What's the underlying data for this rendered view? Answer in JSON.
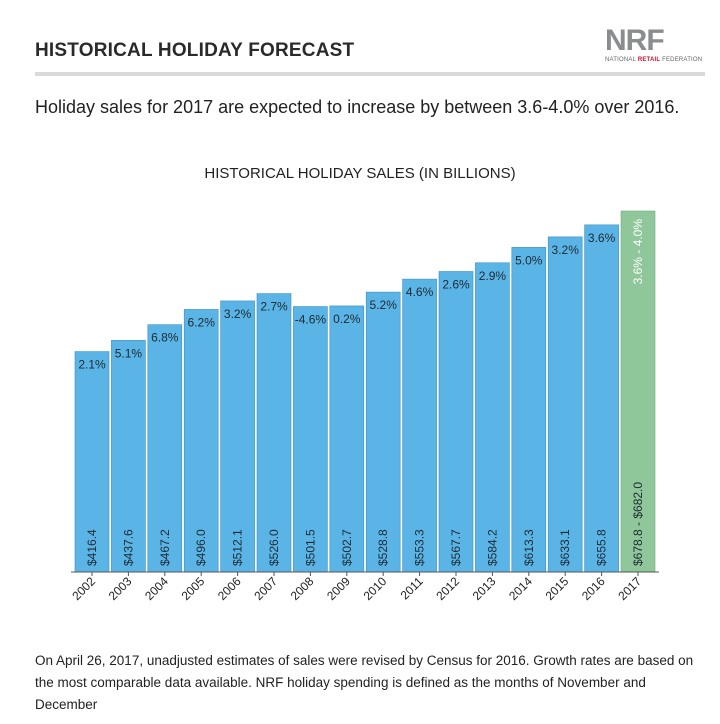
{
  "header": {
    "title": "HISTORICAL HOLIDAY FORECAST",
    "logo_text": "NRF",
    "logo_sub": "NATIONAL RETAIL FEDERATION"
  },
  "subtitle": "Holiday sales for 2017 are expected to increase by between 3.6-4.0% over 2016.",
  "footnote": "On April 26, 2017, unadjusted estimates of sales were revised by Census for 2016. Growth rates are based on the most comparable data available. NRF holiday spending is defined as the months of November and December",
  "colors": {
    "bar": "#5ab4e5",
    "forecast_bar": "#8fc79a",
    "bar_stroke": "#3d8fc0",
    "axis": "#555555"
  },
  "chart_data": {
    "type": "bar",
    "title": "HISTORICAL HOLIDAY SALES (IN BILLIONS)",
    "xlabel": "",
    "ylabel": "",
    "categories": [
      "2002",
      "2003",
      "2004",
      "2005",
      "2006",
      "2007",
      "2008",
      "2009",
      "2010",
      "2011",
      "2012",
      "2013",
      "2014",
      "2015",
      "2016",
      "2017"
    ],
    "values": [
      416.4,
      437.6,
      467.2,
      496.0,
      512.1,
      526.0,
      501.5,
      502.7,
      528.8,
      553.3,
      567.7,
      584.2,
      613.3,
      633.1,
      655.8,
      682.0
    ],
    "value_labels": [
      "$416.4",
      "$437.6",
      "$467.2",
      "$496.0",
      "$512.1",
      "$526.0",
      "$501.5",
      "$502.7",
      "$528.8",
      "$553.3",
      "$567.7",
      "$584.2",
      "$613.3",
      "$633.1",
      "$655.8",
      "$678.8 - $682.0"
    ],
    "growth_labels": [
      "2.1%",
      "5.1%",
      "6.8%",
      "6.2%",
      "3.2%",
      "2.7%",
      "-4.6%",
      "0.2%",
      "5.2%",
      "4.6%",
      "2.6%",
      "2.9%",
      "5.0%",
      "3.2%",
      "3.6%",
      "3.6% - 4.0%"
    ],
    "forecast_index": 15,
    "ylim": [
      0,
      682.0
    ],
    "grid": false,
    "legend": "none"
  }
}
